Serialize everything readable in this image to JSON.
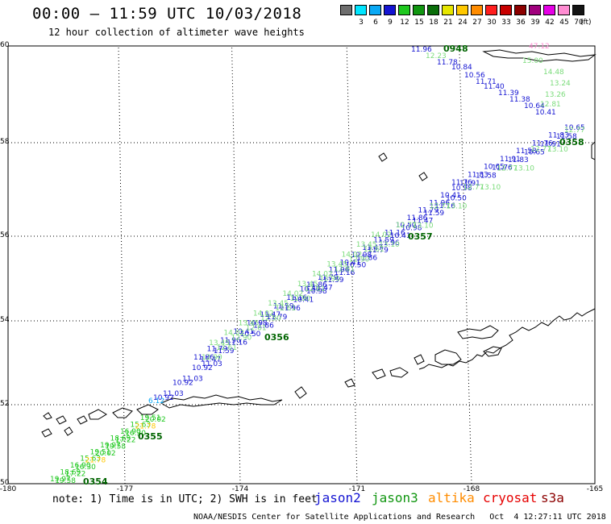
{
  "header": {
    "title": "00:00 – 11:59 UTC 10/03/2018",
    "subtitle": "12 hour collection of altimeter wave heights"
  },
  "legend": {
    "swatches": [
      {
        "color": "#6e6e6e",
        "label": ""
      },
      {
        "color": "#00e5ff",
        "label": "3"
      },
      {
        "color": "#0aa9f5",
        "label": "6"
      },
      {
        "color": "#1414d2",
        "label": "9"
      },
      {
        "color": "#1ec81e",
        "label": "12"
      },
      {
        "color": "#119611",
        "label": "15"
      },
      {
        "color": "#0a6e0a",
        "label": "18"
      },
      {
        "color": "#e6e600",
        "label": "21"
      },
      {
        "color": "#ffc800",
        "label": "24"
      },
      {
        "color": "#ff8c00",
        "label": "27"
      },
      {
        "color": "#ff1e1e",
        "label": "30"
      },
      {
        "color": "#c80000",
        "label": "33"
      },
      {
        "color": "#8c0000",
        "label": "36"
      },
      {
        "color": "#a0007d",
        "label": "39"
      },
      {
        "color": "#e600e6",
        "label": "42"
      },
      {
        "color": "#ff8cd2",
        "label": "45"
      },
      {
        "color": "#141414",
        "label": "70"
      }
    ],
    "unit": "(ft)"
  },
  "axes": {
    "latitudes": [
      "60",
      "58",
      "56",
      "54",
      "52",
      "50"
    ],
    "longitudes": [
      "-180",
      "-177",
      "-174",
      "-171",
      "-168",
      "-165"
    ]
  },
  "observations": {
    "time_labels": [
      {
        "text": "0948",
        "color": "#006400"
      },
      {
        "text": "0358",
        "color": "#006400"
      },
      {
        "text": "0357",
        "color": "#006400"
      },
      {
        "text": "0356",
        "color": "#006400"
      },
      {
        "text": "0355",
        "color": "#006400"
      },
      {
        "text": "0354",
        "color": "#006400"
      }
    ],
    "upper_track": [
      {
        "text": "11.96",
        "color": "#1414d2"
      },
      {
        "text": "12.23",
        "color": "#7cdc7c"
      },
      {
        "text": "11.78",
        "color": "#1414d2"
      },
      {
        "text": "10.84",
        "color": "#1414d2"
      },
      {
        "text": "10.56",
        "color": "#1414d2"
      },
      {
        "text": "11.71",
        "color": "#1414d2"
      },
      {
        "text": "11.40",
        "color": "#1414d2"
      },
      {
        "text": "11.39",
        "color": "#1414d2"
      },
      {
        "text": "11.38",
        "color": "#1414d2"
      },
      {
        "text": "10.64",
        "color": "#1414d2"
      },
      {
        "text": "10.41",
        "color": "#1414d2"
      },
      {
        "text": "47.12",
        "color": "#ff8cd2"
      },
      {
        "text": "15.00",
        "color": "#7cdc7c"
      },
      {
        "text": "14.48",
        "color": "#7cdc7c"
      },
      {
        "text": "13.24",
        "color": "#7cdc7c"
      },
      {
        "text": "13.26",
        "color": "#7cdc7c"
      },
      {
        "text": "12.81",
        "color": "#7cdc7c"
      }
    ],
    "main_track_right": [
      {
        "text": "11.76",
        "color": "#1414d2"
      },
      {
        "text": "11.91",
        "color": "#1414d2"
      },
      {
        "text": "11.83",
        "color": "#1414d2"
      },
      {
        "text": "11.58",
        "color": "#1414d2"
      },
      {
        "text": "10.65",
        "color": "#1414d2"
      }
    ],
    "main_track_mid": [
      {
        "text": "11.86",
        "color": "#1414d2"
      },
      {
        "text": "11.47",
        "color": "#1414d2"
      },
      {
        "text": "11.79",
        "color": "#1414d2"
      },
      {
        "text": "11.59",
        "color": "#1414d2"
      },
      {
        "text": "11.96",
        "color": "#1414d2"
      },
      {
        "text": "11.16",
        "color": "#1414d2"
      },
      {
        "text": "10.41",
        "color": "#1414d2"
      },
      {
        "text": "10.50",
        "color": "#1414d2"
      },
      {
        "text": "10.98",
        "color": "#1414d2"
      }
    ],
    "lower_track": [
      {
        "text": "19.97",
        "color": "#1ec81e"
      },
      {
        "text": "19.58",
        "color": "#1ec81e"
      },
      {
        "text": "18.69",
        "color": "#1ec81e"
      },
      {
        "text": "17.22",
        "color": "#1ec81e"
      },
      {
        "text": "16.90",
        "color": "#1ec81e"
      },
      {
        "text": "16.30",
        "color": "#1ec81e"
      },
      {
        "text": "15.63",
        "color": "#1ec81e"
      },
      {
        "text": "21.78",
        "color": "#ffc800"
      },
      {
        "text": "19.51",
        "color": "#1ec81e"
      },
      {
        "text": "20.02",
        "color": "#1ec81e"
      }
    ]
  },
  "footer": {
    "note": "note: 1) Time is in UTC; 2) SWH is in feet",
    "satellites": [
      {
        "name": "jason2",
        "color": "#1414d2"
      },
      {
        "name": "jason3",
        "color": "#119611"
      },
      {
        "name": "altika",
        "color": "#ff8c00"
      },
      {
        "name": "cryosat",
        "color": "#e60000"
      },
      {
        "name": "s3a",
        "color": "#8c0000"
      }
    ],
    "credit": "NOAA/NESDIS Center for Satellite Applications and Research   Oct  4 12:27:11 UTC 2018"
  }
}
